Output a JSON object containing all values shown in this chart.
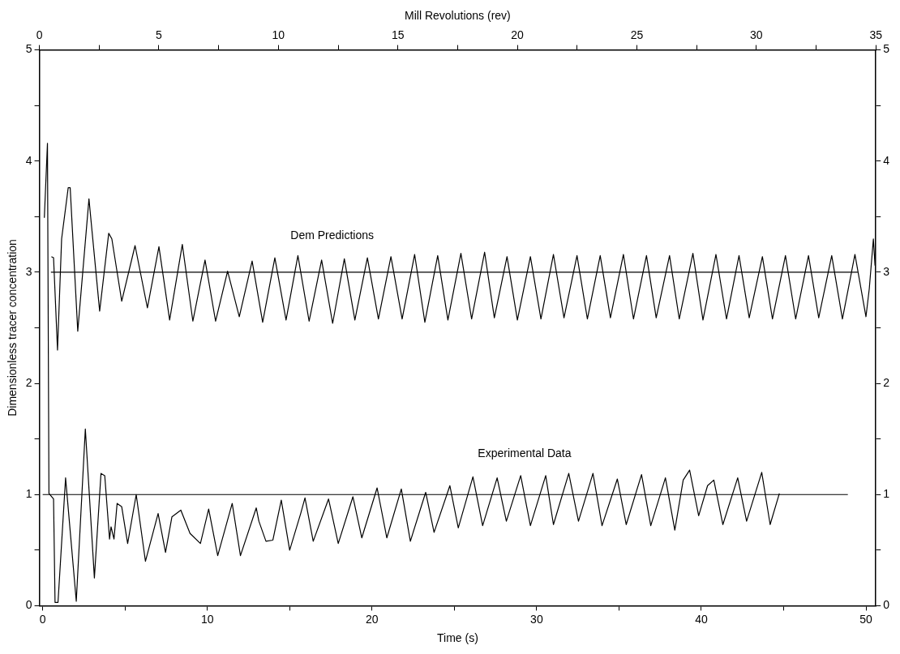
{
  "chart_data": {
    "type": "line",
    "xlabel": "Time (s)",
    "x2label": "Mill Revolutions (rev)",
    "ylabel": "Dimensionless tracer concentration",
    "xlim": [
      -0.2,
      50.6
    ],
    "xticks": [
      0,
      {
        "value": 5,
        "label": null
      },
      10,
      {
        "value": 15,
        "label": null
      },
      20,
      {
        "value": 25,
        "label": null
      },
      30,
      {
        "value": 35,
        "label": null
      },
      40,
      {
        "value": 45,
        "label": null
      },
      50
    ],
    "x2lim": [
      0,
      35
    ],
    "x2ticks": [
      0,
      {
        "value": 2.5,
        "label": null
      },
      5,
      {
        "value": 7.5,
        "label": null
      },
      10,
      {
        "value": 12.5,
        "label": null
      },
      15,
      {
        "value": 17.5,
        "label": null
      },
      20,
      {
        "value": 22.5,
        "label": null
      },
      25,
      {
        "value": 27.5,
        "label": null
      },
      30,
      {
        "value": 32.5,
        "label": null
      },
      35
    ],
    "ylim": [
      0,
      5
    ],
    "yticks": [
      0,
      {
        "value": 0.5,
        "label": null
      },
      1,
      {
        "value": 1.5,
        "label": null
      },
      2,
      {
        "value": 2.5,
        "label": null
      },
      3,
      {
        "value": 3.5,
        "label": null
      },
      4,
      {
        "value": 4.5,
        "label": null
      },
      5
    ],
    "y2lim": [
      0,
      5
    ],
    "y2ticks": [
      0,
      {
        "value": 0.5,
        "label": null
      },
      1,
      {
        "value": 1.5,
        "label": null
      },
      2,
      {
        "value": 2.5,
        "label": null
      },
      3,
      {
        "value": 3.5,
        "label": null
      },
      4,
      {
        "value": 4.5,
        "label": null
      },
      5
    ],
    "grid": false,
    "legend": false,
    "marker": "none",
    "line_style": "solid",
    "series": [
      {
        "name": "Dem Predictions",
        "color": "#000000",
        "x": [
          0.53,
          0.66,
          0.9,
          1.15,
          1.55,
          1.67,
          2.13,
          2.81,
          3.46,
          4.01,
          4.2,
          4.8,
          5.61,
          6.36,
          7.06,
          7.71,
          8.48,
          9.12,
          9.86,
          10.5,
          11.23,
          11.94,
          12.72,
          13.36,
          14.1,
          14.78,
          15.5,
          16.18,
          16.94,
          17.61,
          18.32,
          18.96,
          19.72,
          20.39,
          21.15,
          21.83,
          22.59,
          23.21,
          23.99,
          24.61,
          25.4,
          26.05,
          26.84,
          27.43,
          28.2,
          28.83,
          29.62,
          30.26,
          31.02,
          31.66,
          32.45,
          33.08,
          33.86,
          34.48,
          35.27,
          35.88,
          36.67,
          37.26,
          38.07,
          38.66,
          39.49,
          40.1,
          40.89,
          41.53,
          42.29,
          42.91,
          43.71,
          44.32,
          45.11,
          45.73,
          46.51,
          47.13,
          47.92,
          48.57,
          49.33,
          50.0,
          50.2,
          50.45,
          50.55
        ],
        "values": [
          3.14,
          3.13,
          2.3,
          3.3,
          3.76,
          3.76,
          2.47,
          3.66,
          2.65,
          3.35,
          3.3,
          2.74,
          3.24,
          2.68,
          3.23,
          2.57,
          3.25,
          2.56,
          3.11,
          2.56,
          3.01,
          2.6,
          3.1,
          2.55,
          3.13,
          2.57,
          3.15,
          2.56,
          3.11,
          2.54,
          3.12,
          2.57,
          3.13,
          2.58,
          3.14,
          2.58,
          3.16,
          2.55,
          3.15,
          2.57,
          3.17,
          2.58,
          3.18,
          2.59,
          3.14,
          2.57,
          3.14,
          2.58,
          3.16,
          2.59,
          3.15,
          2.58,
          3.15,
          2.59,
          3.16,
          2.58,
          3.15,
          2.59,
          3.15,
          2.58,
          3.17,
          2.57,
          3.16,
          2.58,
          3.15,
          2.59,
          3.14,
          2.58,
          3.15,
          2.58,
          3.15,
          2.59,
          3.15,
          2.58,
          3.16,
          2.6,
          2.85,
          3.3,
          3.06
        ]
      },
      {
        "name": "Experimental Data",
        "color": "#000000",
        "x": [
          0.1,
          0.29,
          0.38,
          0.66,
          0.75,
          0.93,
          1.39,
          2.04,
          2.59,
          3.14,
          3.54,
          3.77,
          4.06,
          4.15,
          4.33,
          4.52,
          4.8,
          5.16,
          5.68,
          6.24,
          7.01,
          7.46,
          7.85,
          8.39,
          8.95,
          9.58,
          10.08,
          10.63,
          11.51,
          12.01,
          12.97,
          13.13,
          13.56,
          13.98,
          14.49,
          15.0,
          15.67,
          15.93,
          16.43,
          17.36,
          17.95,
          18.84,
          19.38,
          20.31,
          20.9,
          21.78,
          22.33,
          23.26,
          23.77,
          24.73,
          25.24,
          26.13,
          26.72,
          27.6,
          28.16,
          29.03,
          29.62,
          30.55,
          31.02,
          31.95,
          32.54,
          33.42,
          33.97,
          34.9,
          35.44,
          36.37,
          36.93,
          37.82,
          38.39,
          38.9,
          39.29,
          39.84,
          40.38,
          40.76,
          41.31,
          42.21,
          42.75,
          43.67,
          44.18,
          44.74
        ],
        "values": [
          3.49,
          4.16,
          1.01,
          0.96,
          0.03,
          0.03,
          1.15,
          0.04,
          1.59,
          0.25,
          1.19,
          1.17,
          0.6,
          0.71,
          0.6,
          0.92,
          0.89,
          0.56,
          1.0,
          0.4,
          0.83,
          0.48,
          0.8,
          0.86,
          0.65,
          0.56,
          0.87,
          0.45,
          0.92,
          0.45,
          0.88,
          0.76,
          0.58,
          0.59,
          0.95,
          0.5,
          0.83,
          0.97,
          0.58,
          0.96,
          0.56,
          0.98,
          0.61,
          1.06,
          0.61,
          1.05,
          0.58,
          1.02,
          0.66,
          1.08,
          0.7,
          1.16,
          0.72,
          1.15,
          0.76,
          1.17,
          0.72,
          1.17,
          0.73,
          1.19,
          0.76,
          1.19,
          0.72,
          1.14,
          0.73,
          1.18,
          0.72,
          1.15,
          0.68,
          1.13,
          1.22,
          0.81,
          1.08,
          1.13,
          0.73,
          1.15,
          0.76,
          1.2,
          0.73,
          1.01
        ]
      },
      {
        "color": "#000000",
        "x": [
          0.5,
          49.5
        ],
        "values": [
          3,
          3
        ]
      },
      {
        "color": "#000000",
        "x": [
          0,
          48.9
        ],
        "values": [
          1,
          1
        ]
      }
    ]
  }
}
